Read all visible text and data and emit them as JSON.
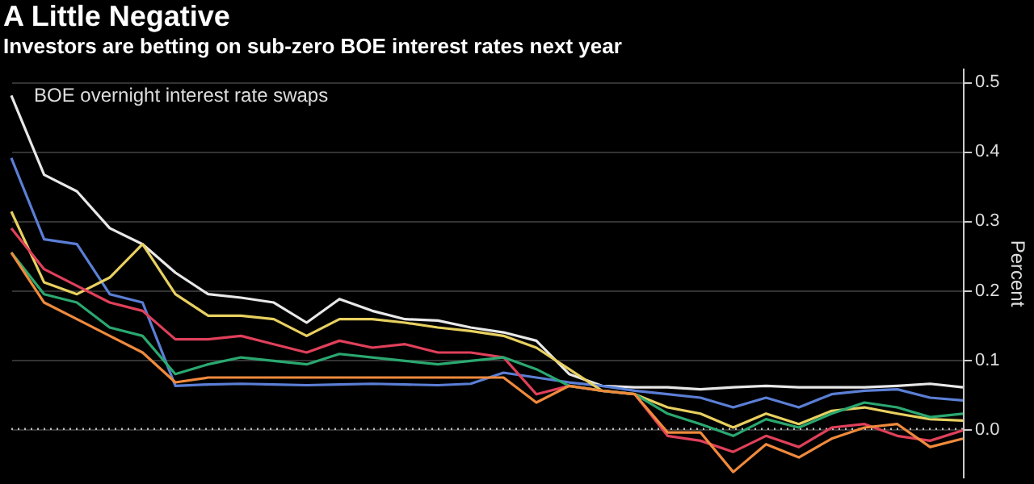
{
  "chart_data": {
    "type": "line",
    "title": "A Little Negative",
    "subtitle": "Investors are betting on sub-zero BOE interest rates next year",
    "ylabel": "Percent",
    "annotations": [
      "BOE overnight interest rate swaps"
    ],
    "categories": [
      null,
      null,
      null,
      null,
      null,
      null,
      null,
      null,
      null,
      null,
      null,
      null,
      null,
      null,
      null,
      null,
      null,
      null,
      null,
      null,
      null,
      null,
      null,
      null,
      null,
      null,
      null,
      null,
      null,
      null
    ],
    "series": [
      {
        "color": "#e8e8e8",
        "values": [
          0.48,
          0.366,
          0.342,
          0.289,
          0.266,
          0.225,
          0.194,
          0.189,
          0.182,
          0.153,
          0.187,
          0.17,
          0.158,
          0.156,
          0.146,
          0.139,
          0.127,
          0.079,
          0.062,
          0.06,
          0.06,
          0.057,
          0.06,
          0.062,
          0.06,
          0.06,
          0.06,
          0.062,
          0.065,
          0.06
        ]
      },
      {
        "color": "#5b7fd6",
        "values": [
          0.39,
          0.273,
          0.266,
          0.194,
          0.182,
          0.062,
          0.064,
          0.065,
          0.064,
          0.063,
          0.064,
          0.065,
          0.064,
          0.063,
          0.065,
          0.081,
          0.074,
          0.067,
          0.062,
          0.055,
          0.05,
          0.045,
          0.031,
          0.045,
          0.031,
          0.05,
          0.055,
          0.057,
          0.045,
          0.041
        ]
      },
      {
        "color": "#e8d060",
        "values": [
          0.313,
          0.211,
          0.194,
          0.218,
          0.266,
          0.194,
          0.163,
          0.163,
          0.158,
          0.134,
          0.158,
          0.158,
          0.153,
          0.146,
          0.141,
          0.134,
          0.117,
          0.086,
          0.055,
          0.05,
          0.031,
          0.022,
          0.002,
          0.022,
          0.007,
          0.026,
          0.031,
          0.022,
          0.014,
          0.012
        ]
      },
      {
        "color": "#e0405a",
        "values": [
          0.289,
          0.23,
          0.206,
          0.182,
          0.17,
          0.129,
          0.129,
          0.134,
          0.122,
          0.11,
          0.127,
          0.117,
          0.122,
          0.11,
          0.11,
          0.103,
          0.05,
          0.062,
          0.055,
          0.05,
          -0.01,
          -0.017,
          -0.033,
          -0.01,
          -0.026,
          0.002,
          0.007,
          -0.01,
          -0.017,
          -0.002
        ]
      },
      {
        "color": "#2aa870",
        "values": [
          0.254,
          0.194,
          0.182,
          0.146,
          0.134,
          0.079,
          0.093,
          0.103,
          0.098,
          0.093,
          0.108,
          0.103,
          0.098,
          0.093,
          0.098,
          0.103,
          0.086,
          0.062,
          0.055,
          0.05,
          0.022,
          0.007,
          -0.01,
          0.014,
          0.002,
          0.022,
          0.038,
          0.031,
          0.017,
          0.022
        ]
      },
      {
        "color": "#f08a3c",
        "values": [
          0.254,
          0.182,
          0.158,
          0.134,
          0.11,
          0.067,
          0.074,
          0.074,
          0.074,
          0.074,
          0.074,
          0.074,
          0.074,
          0.074,
          0.074,
          0.074,
          0.038,
          0.062,
          0.055,
          0.05,
          -0.005,
          -0.005,
          -0.062,
          -0.022,
          -0.041,
          -0.014,
          0.002,
          0.007,
          -0.026,
          -0.014
        ]
      }
    ],
    "ylim": [
      -0.07,
      0.52
    ],
    "yticks": [
      {
        "value": 0,
        "label": "0.0"
      },
      0.1,
      0.2,
      0.3,
      0.4,
      0.5
    ],
    "ref_lines": [
      {
        "axis": "y",
        "value": 0,
        "color": "#bbbbbb",
        "line_style": "dotted"
      }
    ],
    "grid": "y",
    "marker": "none",
    "line_style": "solid"
  }
}
